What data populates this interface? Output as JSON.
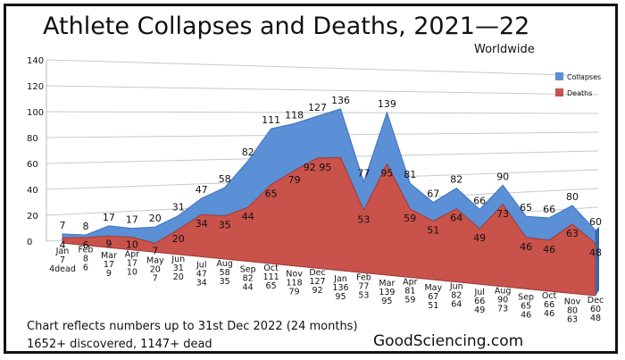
{
  "chart_data": {
    "type": "area",
    "title": "Athlete Collapses and Deaths, 2021—22",
    "subtitle": "Worldwide",
    "ylim": [
      0,
      140
    ],
    "yticks": [
      0,
      20,
      40,
      60,
      80,
      100,
      120,
      140
    ],
    "grid": true,
    "legend_position": "right",
    "categories": [
      "Jan",
      "Feb",
      "Mar",
      "Apr",
      "May",
      "Jun",
      "Jul",
      "Aug",
      "Sep",
      "Oct",
      "Nov",
      "Dec",
      "Jan",
      "Feb",
      "Mar",
      "Apr",
      "May",
      "Jun",
      "Jul",
      "Aug",
      "Sep",
      "Oct",
      "Nov",
      "Dec"
    ],
    "cat_sub": [
      [
        "7",
        "4dead"
      ],
      [
        "8",
        "6"
      ],
      [
        "17",
        "9"
      ],
      [
        "17",
        "10"
      ],
      [
        "20",
        "7"
      ],
      [
        "31",
        "20"
      ],
      [
        "47",
        "34"
      ],
      [
        "58",
        "35"
      ],
      [
        "82",
        "44"
      ],
      [
        "111",
        "65"
      ],
      [
        "118",
        "79"
      ],
      [
        "127",
        "92"
      ],
      [
        "136",
        "95"
      ],
      [
        "77",
        "53"
      ],
      [
        "139",
        "95"
      ],
      [
        "81",
        "59"
      ],
      [
        "67",
        "51"
      ],
      [
        "82",
        "64"
      ],
      [
        "66",
        "49"
      ],
      [
        "90",
        "73"
      ],
      [
        "65",
        "46"
      ],
      [
        "66",
        "46"
      ],
      [
        "80",
        "63"
      ],
      [
        "60",
        "48"
      ]
    ],
    "series": [
      {
        "name": "Collapses",
        "color": "#5b8fd6",
        "values": [
          7,
          8,
          17,
          17,
          20,
          31,
          47,
          58,
          82,
          111,
          118,
          127,
          136,
          77,
          139,
          81,
          67,
          82,
          66,
          90,
          65,
          66,
          80,
          60
        ],
        "labels": [
          "7",
          "8",
          "17",
          "17",
          "20",
          "31",
          "47",
          "58",
          "82",
          "111",
          "118",
          "127",
          "136",
          "77",
          "139",
          "81",
          "67",
          "82",
          "66",
          "90",
          "65",
          "66",
          "80",
          "60"
        ]
      },
      {
        "name": "Deaths",
        "color": "#c9524a",
        "values": [
          4,
          6,
          9,
          10,
          7,
          20,
          34,
          35,
          44,
          65,
          79,
          92,
          95,
          53,
          95,
          59,
          51,
          64,
          49,
          73,
          46,
          46,
          63,
          48
        ],
        "labels": [
          "4",
          "6",
          "9",
          "10",
          "7",
          "20",
          "34",
          "35",
          "44",
          "65",
          "79",
          "92 95",
          "",
          "53",
          "95",
          "59",
          "51",
          "64",
          "49",
          "73",
          "46",
          "46",
          "63",
          "48"
        ]
      }
    ]
  },
  "footer": {
    "note": "Chart reflects numbers up to 31st Dec 2022 (24 months)",
    "totals": "1652+ discovered, 1147+ dead",
    "brand": "GoodSciencing.com"
  }
}
